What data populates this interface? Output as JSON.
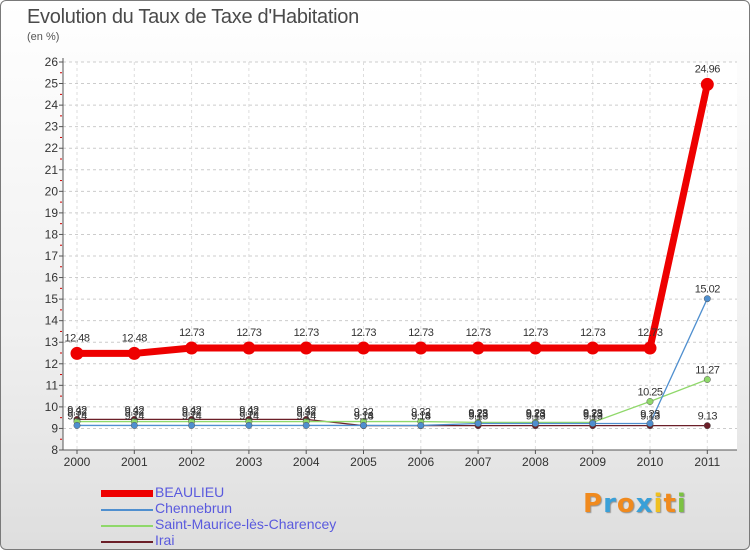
{
  "title": "Evolution du Taux de Taxe d'Habitation",
  "subtitle": "(en %)",
  "logo": {
    "letters": [
      "P",
      "r",
      "o",
      "x",
      "i",
      "t",
      "i"
    ],
    "colors": [
      "#f08a1e",
      "#3aa0d8",
      "#f08a1e",
      "#3aa0d8",
      "#f0c020",
      "#f08a1e",
      "#7cc242"
    ]
  },
  "chart_data": {
    "type": "line",
    "title": "Evolution du Taux de Taxe d'Habitation",
    "ylabel": "(en %)",
    "xlabel": "",
    "x": [
      "2000",
      "2001",
      "2002",
      "2003",
      "2004",
      "2005",
      "2006",
      "2007",
      "2008",
      "2009",
      "2010",
      "2011"
    ],
    "ylim": [
      8,
      26
    ],
    "yticks": [
      8,
      9,
      10,
      11,
      12,
      13,
      14,
      15,
      16,
      17,
      18,
      19,
      20,
      21,
      22,
      23,
      24,
      25,
      26
    ],
    "legend_position": "bottom-left",
    "series": [
      {
        "name": "Irai",
        "color": "#6b1f28",
        "values": [
          9.42,
          9.42,
          9.42,
          9.42,
          9.42,
          9.13,
          9.13,
          9.13,
          9.13,
          9.13,
          9.13,
          9.13
        ],
        "labels": [
          "9.42",
          "9.42",
          "9.42",
          "9.42",
          "9.42",
          "9.13",
          "9.13",
          "9.13",
          "9.13",
          "9.13",
          "9.13",
          "9.13"
        ]
      },
      {
        "name": "Saint-Maurice-lès-Charencey",
        "color": "#8fd86a",
        "values": [
          9.32,
          9.32,
          9.32,
          9.32,
          9.32,
          9.32,
          9.32,
          9.28,
          9.28,
          9.28,
          10.25,
          11.27
        ],
        "labels": [
          "9.32",
          "9.32",
          "9.32",
          "9.32",
          "9.32",
          "9.32",
          "9.32",
          "9.28",
          "9.28",
          "9.28",
          "10.25",
          "11.27"
        ]
      },
      {
        "name": "Chennebrun",
        "color": "#4f8fcf",
        "values": [
          9.14,
          9.14,
          9.14,
          9.14,
          9.14,
          9.14,
          9.14,
          9.23,
          9.23,
          9.23,
          9.23,
          15.02
        ],
        "labels": [
          "9.14",
          "9.14",
          "9.14",
          "9.14",
          "9.14",
          "9.14",
          "9.14",
          "9.23",
          "9.23",
          "9.23",
          "9.23",
          "15.02"
        ]
      },
      {
        "name": "BEAULIEU",
        "color": "#ee0000",
        "values": [
          12.48,
          12.48,
          12.73,
          12.73,
          12.73,
          12.73,
          12.73,
          12.73,
          12.73,
          12.73,
          12.73,
          24.96
        ],
        "labels": [
          "12.48",
          "12.48",
          "12.73",
          "12.73",
          "12.73",
          "12.73",
          "12.73",
          "12.73",
          "12.73",
          "12.73",
          "12.73",
          "24.96"
        ]
      }
    ],
    "legend": [
      "BEAULIEU",
      "Chennebrun",
      "Saint-Maurice-lès-Charencey",
      "Irai"
    ]
  }
}
